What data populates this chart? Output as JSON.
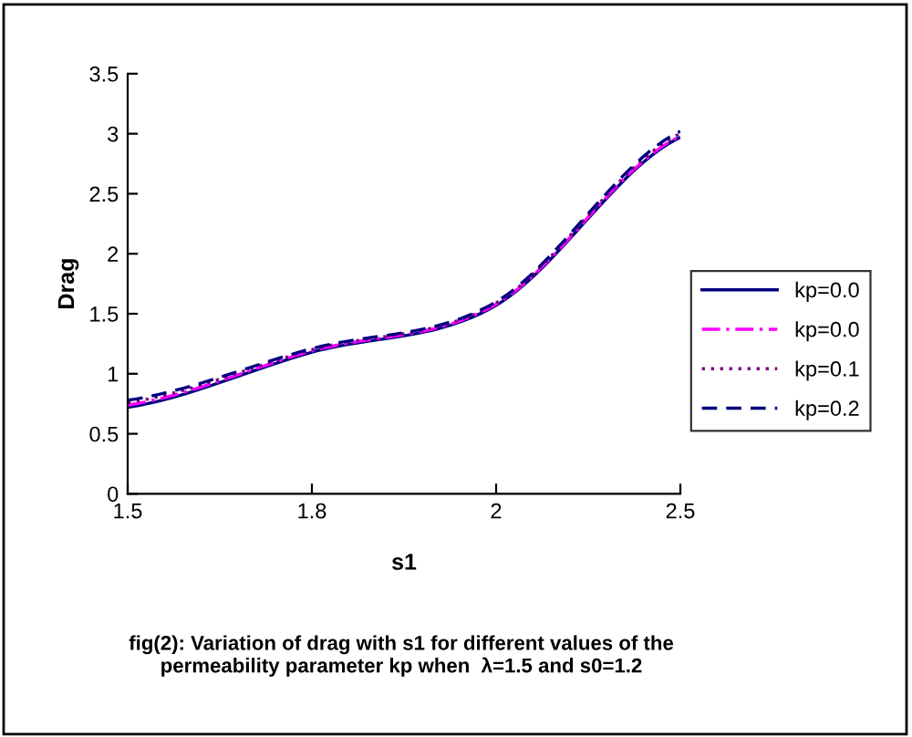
{
  "chart_data": {
    "type": "line",
    "xlabel": "s1",
    "ylabel": "Drag",
    "categories": [
      "1.5",
      "1.8",
      "2",
      "2.5"
    ],
    "series": [
      {
        "name": "kp=0.0",
        "color": "#000080",
        "line_style": "solid",
        "values": [
          0.72,
          1.18,
          1.57,
          2.97
        ]
      },
      {
        "name": "kp=0.0",
        "color": "#ff00ff",
        "line_style": "dashdot",
        "values": [
          0.74,
          1.19,
          1.58,
          2.98
        ]
      },
      {
        "name": "kp=0.1",
        "color": "#800080",
        "line_style": "dotted",
        "values": [
          0.76,
          1.2,
          1.59,
          3.0
        ]
      },
      {
        "name": "kp=0.2",
        "color": "#000080",
        "line_style": "dashed",
        "values": [
          0.78,
          1.21,
          1.6,
          3.02
        ]
      }
    ],
    "ylim": [
      0,
      3.5
    ],
    "yticks": [
      0,
      0.5,
      1,
      1.5,
      2,
      2.5,
      3,
      3.5
    ],
    "grid": false,
    "legend": "right",
    "marker": "none",
    "annotations": [
      "fig(2): Variation of drag with s1 for different values of the\npermeability parameter kp when  λ=1.5 and s0=1.2"
    ]
  }
}
